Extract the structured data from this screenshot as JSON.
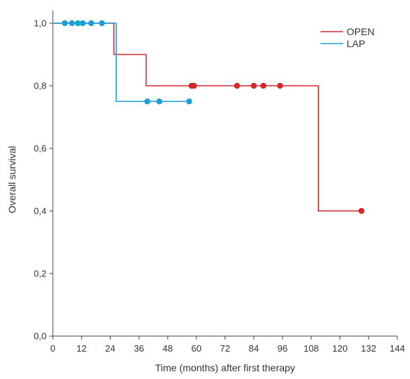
{
  "chart_data": {
    "type": "line",
    "xlabel": "Time (months) after first therapy",
    "ylabel": "Overall survival",
    "xlim": [
      0,
      144
    ],
    "ylim": [
      0,
      1.0
    ],
    "xticks": [
      0,
      12,
      24,
      36,
      48,
      60,
      72,
      84,
      96,
      108,
      120,
      132,
      144
    ],
    "yticks": [
      0.0,
      0.2,
      0.4,
      0.6,
      0.8,
      1.0
    ],
    "xtick_labels": [
      "0",
      "12",
      "24",
      "36",
      "48",
      "60",
      "72",
      "84",
      "96",
      "108",
      "120",
      "132",
      "144"
    ],
    "ytick_labels": [
      "0,0",
      "0,2",
      "0,4",
      "0,6",
      "0,8",
      "1,0"
    ],
    "grid": false,
    "legend_position": "top-right",
    "series": [
      {
        "name": "OPEN",
        "color": "#d62728",
        "steps": [
          [
            0,
            1.0
          ],
          [
            25.5,
            0.9
          ],
          [
            39,
            0.8
          ],
          [
            111,
            0.4
          ],
          [
            129,
            0.4
          ]
        ],
        "censored": [
          [
            58,
            0.8
          ],
          [
            59,
            0.8
          ],
          [
            77,
            0.8
          ],
          [
            84,
            0.8
          ],
          [
            88,
            0.8
          ],
          [
            95,
            0.8
          ],
          [
            129,
            0.4
          ]
        ]
      },
      {
        "name": "LAP",
        "color": "#1ba1d6",
        "steps": [
          [
            0,
            1.0
          ],
          [
            26.5,
            0.75
          ],
          [
            57,
            0.75
          ]
        ],
        "censored": [
          [
            5,
            1.0
          ],
          [
            8,
            1.0
          ],
          [
            10.5,
            1.0
          ],
          [
            12.5,
            1.0
          ],
          [
            16,
            1.0
          ],
          [
            20.5,
            1.0
          ],
          [
            39.5,
            0.75
          ],
          [
            44.5,
            0.75
          ],
          [
            57,
            0.75
          ]
        ]
      }
    ]
  }
}
